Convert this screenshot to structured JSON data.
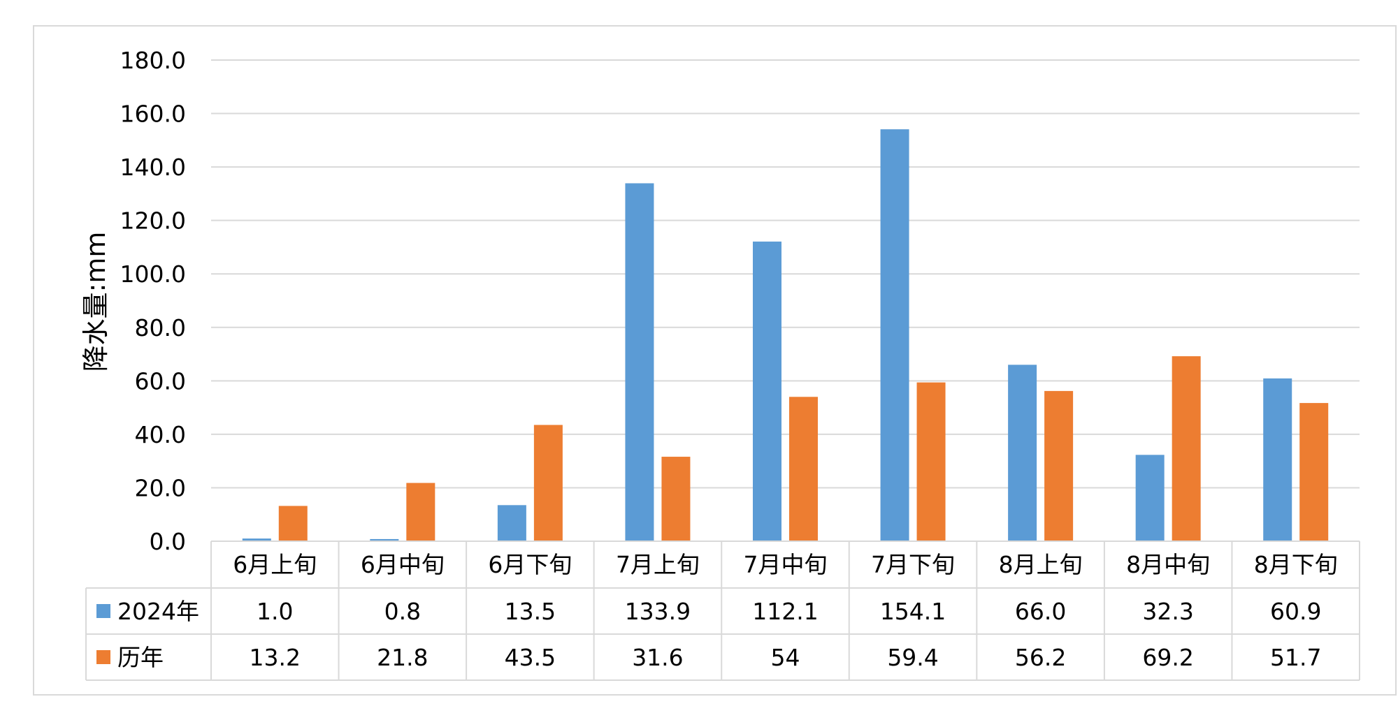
{
  "chart_data": {
    "type": "bar",
    "title": "",
    "ylabel": "降水量:mm",
    "xlabel": "",
    "ylim": [
      0,
      180
    ],
    "yticks": [
      "0.0",
      "20.0",
      "40.0",
      "60.0",
      "80.0",
      "100.0",
      "120.0",
      "140.0",
      "160.0",
      "180.0"
    ],
    "grid": true,
    "legend_position": "data-table",
    "categories": [
      "6月上旬",
      "6月中旬",
      "6月下旬",
      "7月上旬",
      "7月中旬",
      "7月下旬",
      "8月上旬",
      "8月中旬",
      "8月下旬"
    ],
    "series": [
      {
        "name": "2024年",
        "color": "#5b9bd5",
        "values": [
          1.0,
          0.8,
          13.5,
          133.9,
          112.1,
          154.1,
          66.0,
          32.3,
          60.9
        ],
        "labels": [
          "1.0",
          "0.8",
          "13.5",
          "133.9",
          "112.1",
          "154.1",
          "66.0",
          "32.3",
          "60.9"
        ]
      },
      {
        "name": "历年",
        "color": "#ed7d31",
        "values": [
          13.2,
          21.8,
          43.5,
          31.6,
          54,
          59.4,
          56.2,
          69.2,
          51.7
        ],
        "labels": [
          "13.2",
          "21.8",
          "43.5",
          "31.6",
          "54",
          "59.4",
          "56.2",
          "69.2",
          "51.7"
        ]
      }
    ]
  }
}
